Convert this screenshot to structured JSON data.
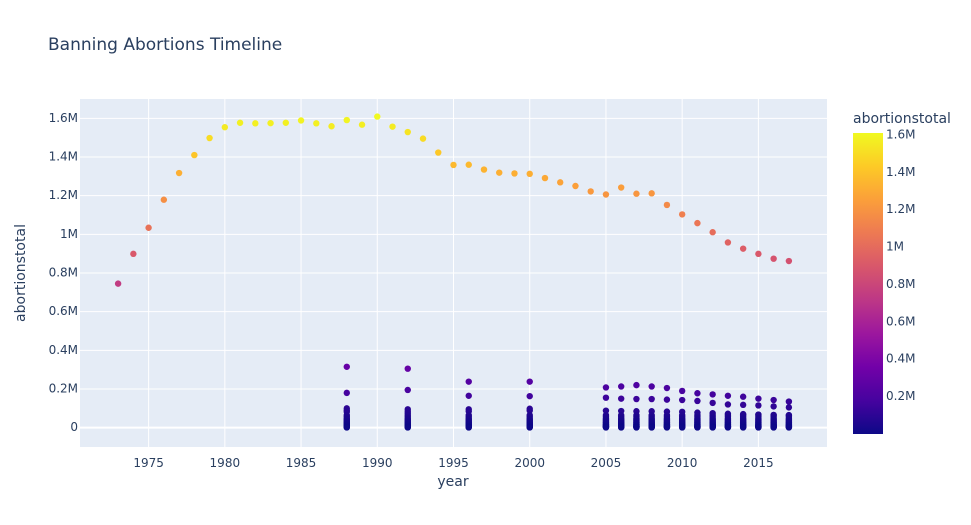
{
  "chart_data": {
    "type": "scatter",
    "title": "Banning Abortions Timeline",
    "xlabel": "year",
    "ylabel": "abortionstotal",
    "xlim": [
      1970.5,
      2019.5
    ],
    "ylim": [
      -100000,
      1700000
    ],
    "x_ticks": [
      1975,
      1980,
      1985,
      1990,
      1995,
      2000,
      2005,
      2010,
      2015
    ],
    "y_ticks": [
      {
        "value": 0,
        "label": "0"
      },
      {
        "value": 200000,
        "label": "0.2M"
      },
      {
        "value": 400000,
        "label": "0.4M"
      },
      {
        "value": 600000,
        "label": "0.6M"
      },
      {
        "value": 800000,
        "label": "0.8M"
      },
      {
        "value": 1000000,
        "label": "1M"
      },
      {
        "value": 1200000,
        "label": "1.2M"
      },
      {
        "value": 1400000,
        "label": "1.4M"
      },
      {
        "value": 1600000,
        "label": "1.6M"
      }
    ],
    "colorbar": {
      "title": "abortionstotal",
      "range": [
        0,
        1610000
      ],
      "ticks": [
        {
          "value": 200000,
          "label": "0.2M"
        },
        {
          "value": 400000,
          "label": "0.4M"
        },
        {
          "value": 600000,
          "label": "0.6M"
        },
        {
          "value": 800000,
          "label": "0.8M"
        },
        {
          "value": 1000000,
          "label": "1M"
        },
        {
          "value": 1200000,
          "label": "1.2M"
        },
        {
          "value": 1400000,
          "label": "1.4M"
        },
        {
          "value": 1600000,
          "label": "1.6M"
        }
      ],
      "colorscale": [
        "#0d0887",
        "#46039f",
        "#7201a8",
        "#9c179e",
        "#bd3786",
        "#d8576b",
        "#ed7953",
        "#fb9f3a",
        "#fdca26",
        "#f0f921"
      ]
    },
    "national_totals": {
      "x": [
        1973,
        1974,
        1975,
        1976,
        1977,
        1978,
        1979,
        1980,
        1981,
        1982,
        1983,
        1984,
        1985,
        1986,
        1987,
        1988,
        1989,
        1990,
        1991,
        1992,
        1993,
        1994,
        1995,
        1996,
        1997,
        1998,
        1999,
        2000,
        2001,
        2002,
        2003,
        2004,
        2005,
        2006,
        2007,
        2008,
        2009,
        2010,
        2011,
        2012,
        2013,
        2014,
        2015,
        2016,
        2017
      ],
      "y": [
        745000,
        899000,
        1034000,
        1179000,
        1317000,
        1410000,
        1498000,
        1554000,
        1577000,
        1574000,
        1575000,
        1577000,
        1589000,
        1574000,
        1559000,
        1591000,
        1567000,
        1609000,
        1557000,
        1529000,
        1495000,
        1423000,
        1359000,
        1360000,
        1335000,
        1319000,
        1315000,
        1313000,
        1291000,
        1269000,
        1250000,
        1222000,
        1206000,
        1242000,
        1210000,
        1212000,
        1152000,
        1103000,
        1058000,
        1011000,
        958000,
        926000,
        899000,
        874000,
        862000
      ]
    },
    "state_years": [
      1988,
      1992,
      1996,
      2000,
      2005,
      2006,
      2007,
      2008,
      2009,
      2010,
      2011,
      2012,
      2013,
      2014,
      2015,
      2016,
      2017
    ],
    "state_top_values": {
      "1988": [
        315000,
        180000,
        100000,
        90000,
        82000
      ],
      "1992": [
        305000,
        195000,
        95000,
        85000,
        75000
      ],
      "1996": [
        238000,
        165000,
        95000,
        85000
      ],
      "2000": [
        238000,
        163000,
        98000,
        88000
      ],
      "2005": [
        208000,
        155000,
        88000
      ],
      "2006": [
        213000,
        150000,
        86000
      ],
      "2007": [
        220000,
        148000,
        85000
      ],
      "2008": [
        213000,
        148000,
        85000
      ],
      "2009": [
        205000,
        145000,
        83000
      ],
      "2010": [
        190000,
        143000,
        82000
      ],
      "2011": [
        178000,
        138000,
        78000
      ],
      "2012": [
        172000,
        128000,
        75000
      ],
      "2013": [
        165000,
        120000,
        72000
      ],
      "2014": [
        160000,
        118000,
        70000
      ],
      "2015": [
        150000,
        115000,
        68000
      ],
      "2016": [
        143000,
        110000,
        66000
      ],
      "2017": [
        135000,
        105000,
        64000
      ]
    },
    "state_small_values": [
      65000,
      55000,
      48000,
      42000,
      37000,
      32000,
      28000,
      24000,
      20000,
      17000,
      14000,
      11000,
      9000,
      7000,
      5000,
      3500,
      2000,
      1000
    ]
  }
}
